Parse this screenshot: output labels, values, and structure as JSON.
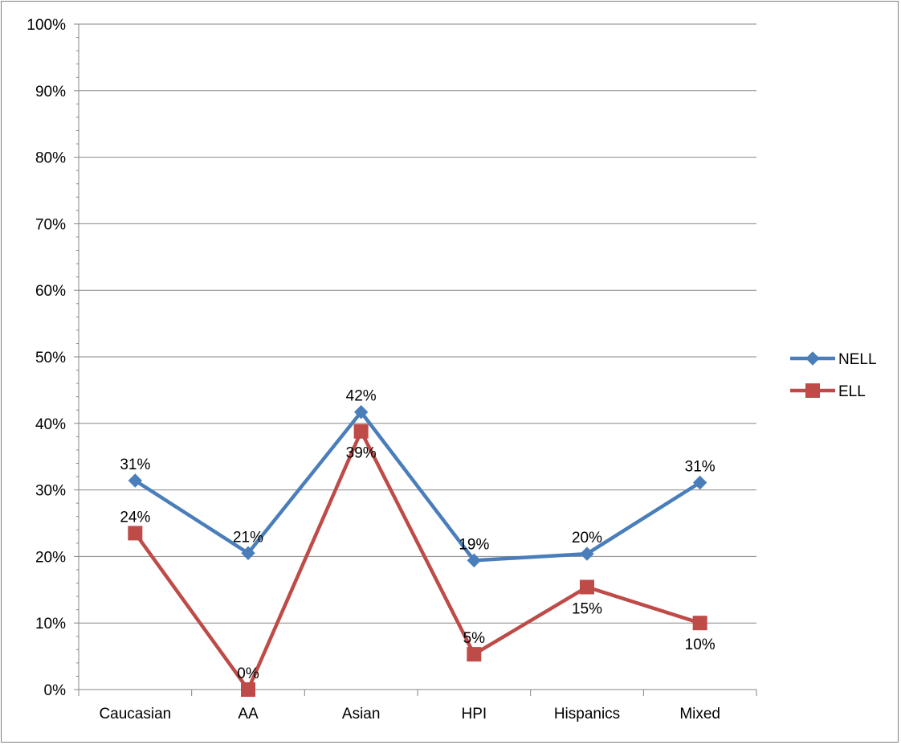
{
  "chart_data": {
    "type": "line",
    "categories": [
      "Caucasian",
      "AA",
      "Asian",
      "HPI",
      "Hispanics",
      "Mixed"
    ],
    "ylim": [
      0,
      100
    ],
    "yticks": [
      "0%",
      "10%",
      "20%",
      "30%",
      "40%",
      "50%",
      "60%",
      "70%",
      "80%",
      "90%",
      "100%"
    ],
    "grid": true,
    "legend_position": "right",
    "series": [
      {
        "name": "NELL",
        "values": [
          31.4,
          20.5,
          41.7,
          19.4,
          20.4,
          31.1
        ],
        "labels": [
          "31%",
          "21%",
          "42%",
          "19%",
          "20%",
          "31%"
        ],
        "label_placement": [
          "above",
          "above",
          "above",
          "above",
          "above",
          "above"
        ],
        "color": "#4a7ebb",
        "marker": "diamond"
      },
      {
        "name": "ELL",
        "values": [
          23.5,
          0,
          38.8,
          5.3,
          15.4,
          10.0
        ],
        "labels": [
          "24%",
          "0%",
          "39%",
          "5%",
          "15%",
          "10%"
        ],
        "label_placement": [
          "above",
          "above",
          "below",
          "above",
          "below",
          "below"
        ],
        "color": "#be4b48",
        "marker": "square"
      }
    ]
  }
}
